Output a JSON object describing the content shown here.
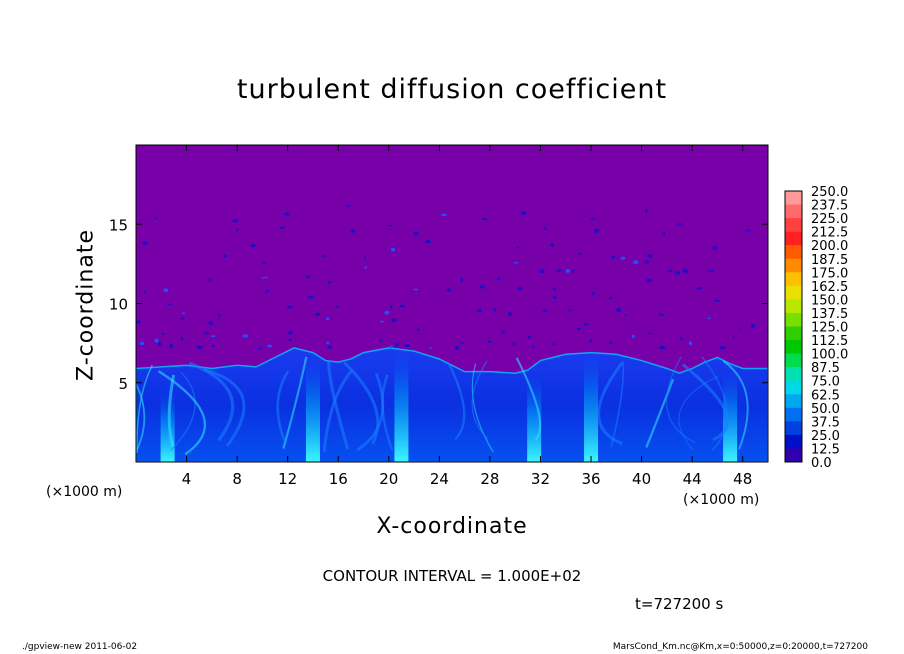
{
  "chart_data": {
    "type": "heatmap",
    "title": "turbulent diffusion coefficient",
    "xlabel": "X-coordinate",
    "ylabel": "Z-coordinate",
    "x_unit": "(×1000 m)",
    "z_unit": "(×1000 m)",
    "xlim": [
      0,
      50
    ],
    "ylim": [
      0,
      20
    ],
    "x_ticks": [
      4,
      8,
      12,
      16,
      20,
      24,
      28,
      32,
      36,
      40,
      44,
      48
    ],
    "y_ticks": [
      5,
      10,
      15
    ],
    "background_value_color": "#7700a8",
    "boundary_layer_profile": {
      "x": [
        0,
        2,
        4,
        6,
        8,
        9.5,
        11,
        12.5,
        14,
        15,
        16,
        17,
        18,
        20,
        22,
        24,
        26,
        28,
        30,
        31,
        32,
        34,
        36,
        38,
        40,
        42,
        43,
        44,
        45,
        46,
        47,
        48,
        50
      ],
      "z": [
        5.9,
        6.0,
        6.1,
        5.9,
        6.1,
        6.0,
        6.6,
        7.2,
        6.9,
        6.4,
        6.3,
        6.5,
        6.9,
        7.2,
        7.0,
        6.5,
        5.7,
        5.7,
        5.6,
        5.8,
        6.4,
        6.8,
        6.9,
        6.8,
        6.4,
        5.9,
        5.6,
        5.9,
        6.3,
        6.6,
        6.2,
        5.9,
        5.9
      ]
    },
    "colorbar": {
      "levels": [
        "250.0",
        "237.5",
        "225.0",
        "212.5",
        "200.0",
        "187.5",
        "175.0",
        "162.5",
        "150.0",
        "137.5",
        "125.0",
        "112.5",
        "100.0",
        "87.5",
        "75.0",
        "62.5",
        "50.0",
        "37.5",
        "25.0",
        "12.5",
        "0.0"
      ],
      "colors": [
        "#ff9a9a",
        "#ff6a6a",
        "#ff4040",
        "#ff2020",
        "#ff5a00",
        "#ff8c00",
        "#ffc000",
        "#e8e000",
        "#b8e800",
        "#78e000",
        "#30d000",
        "#00c800",
        "#00dc50",
        "#00e0b0",
        "#00d8e8",
        "#00a8f0",
        "#0070f0",
        "#0040e0",
        "#0010c8",
        "#3000b0"
      ]
    },
    "contour_interval": "CONTOUR INTERVAL = 1.000E+02",
    "time": "t=727200 s"
  },
  "footer": {
    "left": "./gpview-new   2011-06-02",
    "right": "MarsCond_Km.nc@Km,x=0:50000,z=0:20000,t=727200"
  },
  "colors": {
    "plume_core": "#00ffff",
    "plume_mid": "#00a0ff",
    "layer_base": "#0a28dc"
  }
}
